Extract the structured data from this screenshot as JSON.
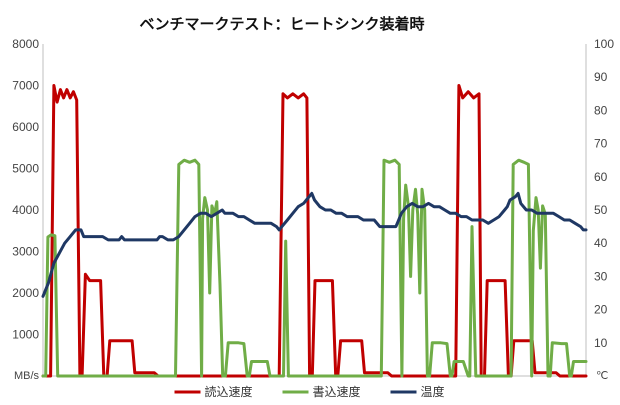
{
  "chart_data": {
    "type": "line",
    "title": "ベンチマークテスト：ヒートシンク装着時",
    "y_left": {
      "unit": "MB/s",
      "min": 0,
      "max": 8000,
      "ticks": [
        1000,
        2000,
        3000,
        4000,
        5000,
        6000,
        7000,
        8000
      ]
    },
    "y_right": {
      "unit": "℃",
      "min": 0,
      "max": 100,
      "ticks": [
        10,
        20,
        30,
        40,
        50,
        60,
        70,
        80,
        90,
        100
      ]
    },
    "x_range": [
      0,
      100
    ],
    "grid": false,
    "legend_position": "bottom",
    "series": [
      {
        "name": "読込速度",
        "color": "#c00000",
        "axis": "left",
        "points": [
          [
            0,
            0
          ],
          [
            1.4,
            0
          ],
          [
            2,
            7000
          ],
          [
            2.6,
            6600
          ],
          [
            3.2,
            6900
          ],
          [
            3.8,
            6700
          ],
          [
            4.4,
            6900
          ],
          [
            5,
            6700
          ],
          [
            5.6,
            6850
          ],
          [
            6.2,
            6650
          ],
          [
            6.8,
            0
          ],
          [
            7.2,
            0
          ],
          [
            7.8,
            2450
          ],
          [
            8.6,
            2300
          ],
          [
            9.6,
            2300
          ],
          [
            10.6,
            2300
          ],
          [
            11.2,
            0
          ],
          [
            11.8,
            0
          ],
          [
            12.3,
            850
          ],
          [
            14,
            850
          ],
          [
            16.4,
            850
          ],
          [
            16.9,
            80
          ],
          [
            20.5,
            80
          ],
          [
            21.2,
            0
          ],
          [
            43.5,
            0
          ],
          [
            44.2,
            6800
          ],
          [
            45,
            6700
          ],
          [
            46,
            6800
          ],
          [
            47,
            6700
          ],
          [
            48,
            6800
          ],
          [
            48.6,
            6700
          ],
          [
            49.1,
            0
          ],
          [
            49.6,
            0
          ],
          [
            50.1,
            2300
          ],
          [
            52,
            2300
          ],
          [
            53.3,
            2300
          ],
          [
            53.9,
            0
          ],
          [
            54.3,
            0
          ],
          [
            54.8,
            850
          ],
          [
            57,
            850
          ],
          [
            58.7,
            850
          ],
          [
            59.2,
            80
          ],
          [
            63.5,
            80
          ],
          [
            64.2,
            0
          ],
          [
            76,
            0
          ],
          [
            76.6,
            7000
          ],
          [
            77.3,
            6700
          ],
          [
            78.3,
            6850
          ],
          [
            79.3,
            6700
          ],
          [
            80.3,
            6800
          ],
          [
            80.7,
            0
          ],
          [
            81.3,
            0
          ],
          [
            81.8,
            2300
          ],
          [
            84,
            2300
          ],
          [
            85.1,
            2300
          ],
          [
            85.7,
            0
          ],
          [
            86.2,
            0
          ],
          [
            86.7,
            850
          ],
          [
            88.5,
            850
          ],
          [
            90.1,
            850
          ],
          [
            90.6,
            80
          ],
          [
            94.5,
            80
          ],
          [
            95.2,
            0
          ],
          [
            100,
            0
          ]
        ]
      },
      {
        "name": "書込速度",
        "color": "#70ad47",
        "axis": "left",
        "points": [
          [
            0,
            0
          ],
          [
            0.5,
            0
          ],
          [
            0.9,
            3350
          ],
          [
            1.5,
            3400
          ],
          [
            2.2,
            3380
          ],
          [
            2.7,
            0
          ],
          [
            24,
            0
          ],
          [
            24.4,
            0
          ],
          [
            25,
            5100
          ],
          [
            26,
            5200
          ],
          [
            27,
            5150
          ],
          [
            28,
            5200
          ],
          [
            28.7,
            5100
          ],
          [
            29.2,
            0
          ],
          [
            29.4,
            3800
          ],
          [
            29.8,
            4300
          ],
          [
            30.3,
            4000
          ],
          [
            30.7,
            2000
          ],
          [
            31.1,
            4100
          ],
          [
            31.6,
            3900
          ],
          [
            32,
            4200
          ],
          [
            32.6,
            2200
          ],
          [
            33.1,
            0
          ],
          [
            33.6,
            0
          ],
          [
            34.1,
            800
          ],
          [
            36,
            800
          ],
          [
            37,
            780
          ],
          [
            37.6,
            0
          ],
          [
            38,
            0
          ],
          [
            38.4,
            350
          ],
          [
            40,
            350
          ],
          [
            41.3,
            350
          ],
          [
            41.8,
            0
          ],
          [
            44.3,
            0
          ],
          [
            44.7,
            3250
          ],
          [
            45.2,
            0
          ],
          [
            62.3,
            0
          ],
          [
            62.8,
            5200
          ],
          [
            63.8,
            5150
          ],
          [
            64.8,
            5200
          ],
          [
            65.6,
            5100
          ],
          [
            66.1,
            0
          ],
          [
            66.4,
            3800
          ],
          [
            66.8,
            4600
          ],
          [
            67.3,
            4100
          ],
          [
            67.7,
            2400
          ],
          [
            68.1,
            4000
          ],
          [
            68.6,
            4500
          ],
          [
            69,
            3900
          ],
          [
            69.4,
            2000
          ],
          [
            69.8,
            4500
          ],
          [
            70.3,
            4000
          ],
          [
            70.8,
            0
          ],
          [
            71.2,
            0
          ],
          [
            71.7,
            800
          ],
          [
            73.3,
            800
          ],
          [
            74.4,
            780
          ],
          [
            75,
            0
          ],
          [
            75.3,
            0
          ],
          [
            75.7,
            350
          ],
          [
            77.4,
            350
          ],
          [
            78.3,
            0
          ],
          [
            78.6,
            0
          ],
          [
            79,
            3600
          ],
          [
            79.7,
            0
          ],
          [
            86.2,
            0
          ],
          [
            86.6,
            5100
          ],
          [
            87.6,
            5200
          ],
          [
            88.6,
            5150
          ],
          [
            89.4,
            5100
          ],
          [
            90,
            0
          ],
          [
            90.3,
            3500
          ],
          [
            90.8,
            4300
          ],
          [
            91.2,
            4000
          ],
          [
            91.6,
            2600
          ],
          [
            92,
            4100
          ],
          [
            92.5,
            3900
          ],
          [
            93,
            0
          ],
          [
            93.4,
            0
          ],
          [
            93.8,
            800
          ],
          [
            95.5,
            780
          ],
          [
            96.4,
            780
          ],
          [
            97,
            0
          ],
          [
            97.3,
            0
          ],
          [
            97.7,
            350
          ],
          [
            99.4,
            350
          ],
          [
            100,
            350
          ]
        ]
      },
      {
        "name": "温度",
        "color": "#1f3864",
        "axis": "right",
        "points": [
          [
            0,
            24
          ],
          [
            1,
            28
          ],
          [
            2,
            34
          ],
          [
            3,
            37
          ],
          [
            4,
            40
          ],
          [
            5,
            42
          ],
          [
            6,
            44
          ],
          [
            7,
            44
          ],
          [
            7.5,
            42
          ],
          [
            9,
            42
          ],
          [
            11,
            42
          ],
          [
            12,
            41
          ],
          [
            13,
            41
          ],
          [
            14,
            41
          ],
          [
            14.5,
            42
          ],
          [
            15,
            41
          ],
          [
            17,
            41
          ],
          [
            18,
            41
          ],
          [
            19,
            41
          ],
          [
            20,
            41
          ],
          [
            21,
            41
          ],
          [
            21.5,
            42
          ],
          [
            22,
            42
          ],
          [
            23,
            41
          ],
          [
            24,
            41
          ],
          [
            25,
            42
          ],
          [
            26,
            44
          ],
          [
            27,
            46
          ],
          [
            28,
            48
          ],
          [
            29,
            49
          ],
          [
            30,
            49
          ],
          [
            31,
            48
          ],
          [
            32,
            49
          ],
          [
            33,
            50
          ],
          [
            33.5,
            49
          ],
          [
            34,
            49
          ],
          [
            35,
            49
          ],
          [
            36,
            48
          ],
          [
            37,
            48
          ],
          [
            38,
            47
          ],
          [
            39,
            46
          ],
          [
            40,
            46
          ],
          [
            41,
            46
          ],
          [
            42,
            46
          ],
          [
            43,
            45
          ],
          [
            43.5,
            44
          ],
          [
            44,
            45
          ],
          [
            45,
            47
          ],
          [
            46,
            49
          ],
          [
            47,
            51
          ],
          [
            48,
            52
          ],
          [
            48.5,
            53
          ],
          [
            49,
            54
          ],
          [
            49.5,
            55
          ],
          [
            50,
            53
          ],
          [
            51,
            51
          ],
          [
            52,
            50
          ],
          [
            53,
            50
          ],
          [
            54,
            49
          ],
          [
            55,
            49
          ],
          [
            56,
            48
          ],
          [
            57,
            48
          ],
          [
            58,
            48
          ],
          [
            59,
            47
          ],
          [
            60,
            47
          ],
          [
            61,
            47
          ],
          [
            62,
            45
          ],
          [
            63,
            45
          ],
          [
            64,
            45
          ],
          [
            65,
            45
          ],
          [
            65.5,
            47
          ],
          [
            66,
            49
          ],
          [
            67,
            51
          ],
          [
            68,
            52
          ],
          [
            69,
            51
          ],
          [
            70,
            51
          ],
          [
            71,
            52
          ],
          [
            72,
            51
          ],
          [
            73,
            51
          ],
          [
            74,
            50
          ],
          [
            75,
            49
          ],
          [
            76,
            49
          ],
          [
            77,
            48
          ],
          [
            78,
            48
          ],
          [
            79,
            47
          ],
          [
            80,
            47
          ],
          [
            81,
            47
          ],
          [
            82,
            46
          ],
          [
            83,
            47
          ],
          [
            84,
            48
          ],
          [
            85,
            50
          ],
          [
            85.5,
            51
          ],
          [
            86,
            53
          ],
          [
            87,
            54
          ],
          [
            87.5,
            55
          ],
          [
            88,
            52
          ],
          [
            89,
            50
          ],
          [
            90,
            50
          ],
          [
            91,
            49
          ],
          [
            92,
            49
          ],
          [
            93,
            49
          ],
          [
            94,
            49
          ],
          [
            95,
            48
          ],
          [
            96,
            47
          ],
          [
            97,
            47
          ],
          [
            98,
            46
          ],
          [
            99,
            45
          ],
          [
            99.5,
            44
          ],
          [
            100,
            44
          ]
        ]
      }
    ]
  }
}
